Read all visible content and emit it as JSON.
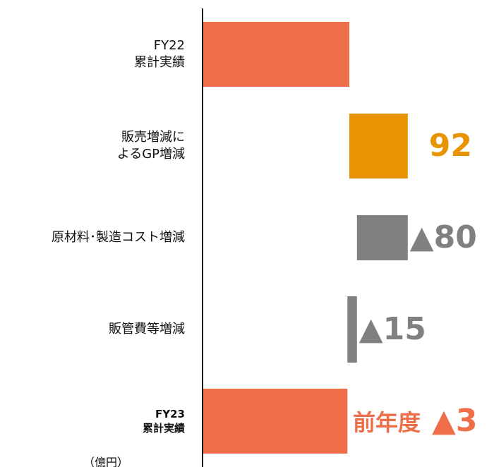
{
  "chart_data": {
    "type": "waterfall",
    "orientation": "horizontal",
    "categories": [
      "FY22\n累計実績",
      "販売増減に\nよるGP増減",
      "原材料･製造コスト増減",
      "販管費等増減",
      "FY23\n累計実績"
    ],
    "values": [
      230,
      92,
      -80,
      -15,
      227
    ],
    "kinds": [
      "total",
      "delta",
      "delta",
      "delta",
      "total"
    ],
    "value_labels": [
      null,
      "92",
      "▲80",
      "▲15",
      null
    ],
    "colors": {
      "total": "#ee6e4a",
      "increase": "#e89400",
      "decrease": "#808080"
    },
    "annotation": {
      "text": "前年度",
      "value": -3,
      "label": "▲3"
    },
    "unit_label": "（億円）"
  }
}
